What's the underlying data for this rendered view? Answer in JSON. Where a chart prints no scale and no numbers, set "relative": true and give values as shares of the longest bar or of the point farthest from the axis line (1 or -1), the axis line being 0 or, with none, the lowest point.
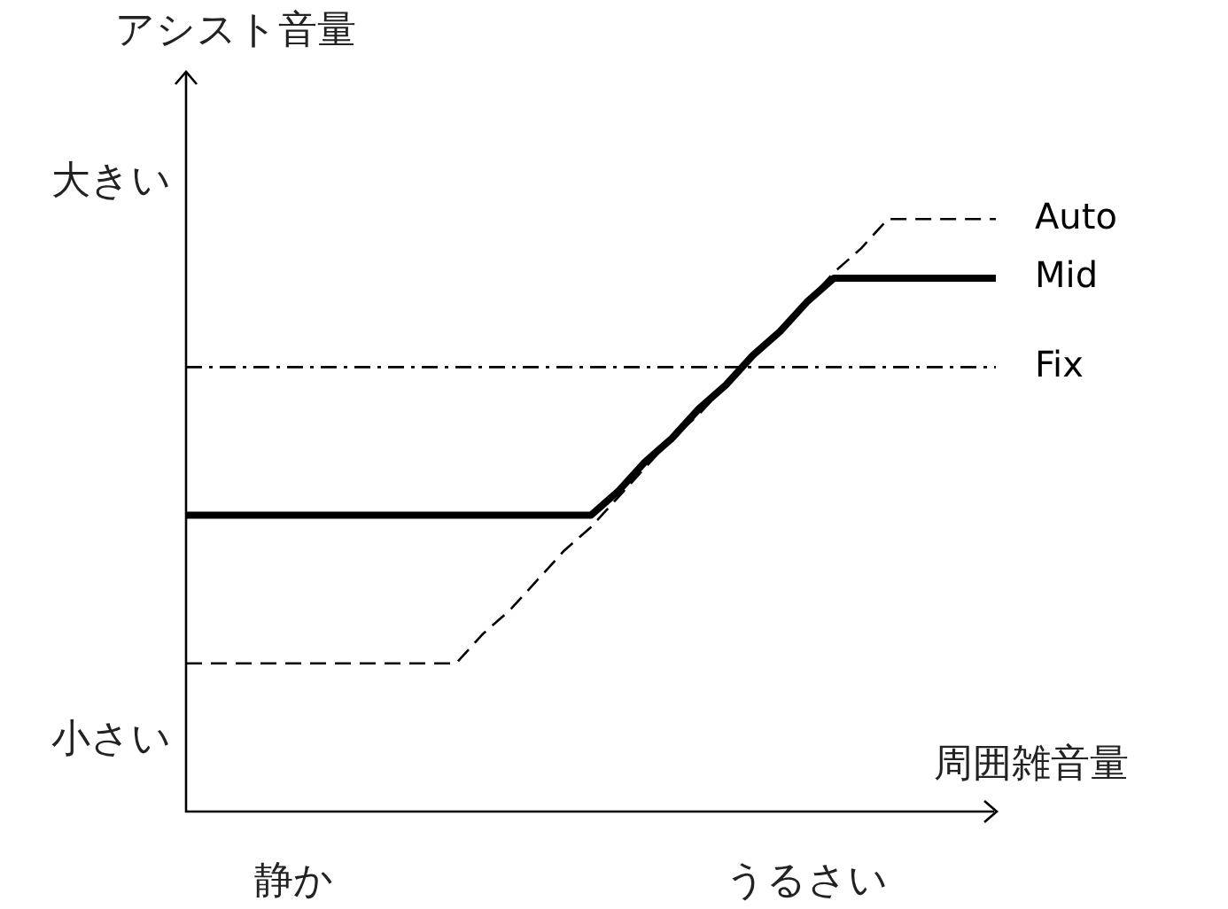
{
  "chart_data": {
    "type": "line",
    "xlabel": "周囲雑音量",
    "ylabel": "アシスト音量",
    "relative": true,
    "categories": [
      null,
      null,
      null,
      null,
      "静か",
      null,
      null,
      null,
      null,
      null,
      null,
      null,
      null,
      null,
      null,
      null,
      null,
      null,
      null,
      null,
      null,
      null,
      null,
      "うるさい",
      null,
      null,
      null,
      null,
      null,
      null,
      null
    ],
    "annotations": [
      "大きい",
      "小さい"
    ],
    "series": [
      {
        "name": "Auto",
        "color": "#000000",
        "line_style": "dashed",
        "values": [
          0.25,
          0.25,
          0.25,
          0.25,
          0.25,
          0.25,
          0.25,
          0.25,
          0.25,
          0.25,
          0.25,
          0.3,
          0.34,
          0.39,
          0.44,
          0.48,
          0.53,
          0.58,
          0.63,
          0.67,
          0.72,
          0.77,
          0.81,
          0.86,
          0.91,
          0.95,
          1,
          1,
          1,
          1,
          1
        ]
      },
      {
        "name": "Mid",
        "color": "#000000",
        "line_style": "solid",
        "values": [
          0.5,
          0.5,
          0.5,
          0.5,
          0.5,
          0.5,
          0.5,
          0.5,
          0.5,
          0.5,
          0.5,
          0.5,
          0.5,
          0.5,
          0.5,
          0.5,
          0.54,
          0.59,
          0.63,
          0.68,
          0.72,
          0.77,
          0.81,
          0.86,
          0.9,
          0.9,
          0.9,
          0.9,
          0.9,
          0.9,
          0.9
        ]
      },
      {
        "name": "Fix",
        "color": "#000000",
        "line_style": "dashdot",
        "values": [
          0.75,
          0.75,
          0.75,
          0.75,
          0.75,
          0.75,
          0.75,
          0.75,
          0.75,
          0.75,
          0.75,
          0.75,
          0.75,
          0.75,
          0.75,
          0.75,
          0.75,
          0.75,
          0.75,
          0.75,
          0.75,
          0.75,
          0.75,
          0.75,
          0.75,
          0.75,
          0.75,
          0.75,
          0.75,
          0.75,
          0.75
        ]
      }
    ],
    "legend": false,
    "grid": false,
    "marker": "none"
  }
}
